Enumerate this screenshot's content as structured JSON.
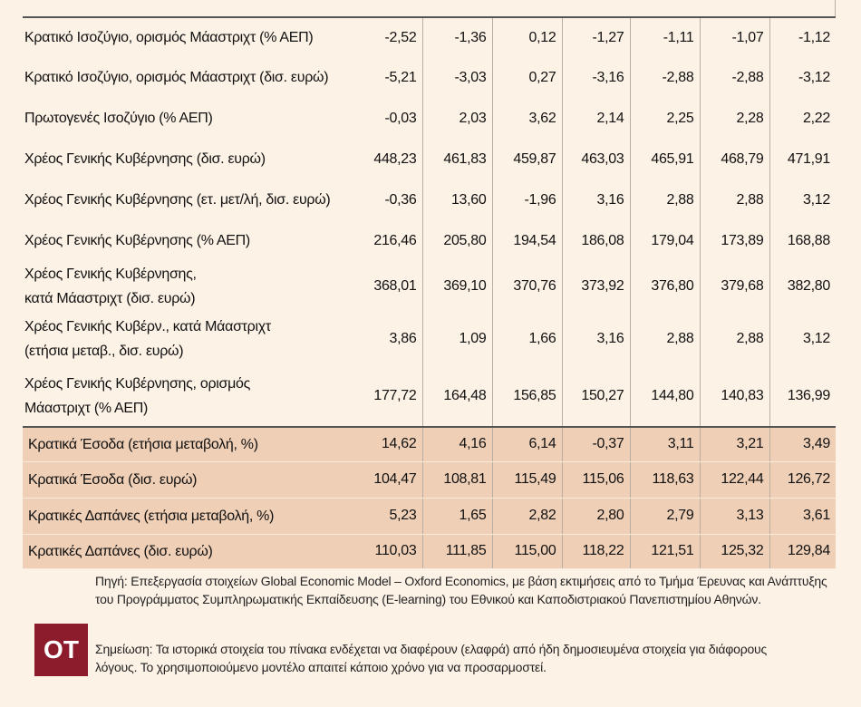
{
  "table": {
    "rows": [
      {
        "label": "Κρατικό Ισοζύγιο, ορισμός Μάαστριχτ (% ΑΕΠ)",
        "values": [
          "-2,52",
          "-1,36",
          "0,12",
          "-1,27",
          "-1,11",
          "-1,07",
          "-1,12"
        ]
      },
      {
        "label": "Κρατικό Ισοζύγιο, ορισμός  Μάαστριχτ (δισ. ευρώ)",
        "values": [
          "-5,21",
          "-3,03",
          "0,27",
          "-3,16",
          "-2,88",
          "-2,88",
          "-3,12"
        ]
      },
      {
        "label": "Πρωτογενές Ισοζύγιο (% ΑΕΠ)",
        "values": [
          "-0,03",
          "2,03",
          "3,62",
          "2,14",
          "2,25",
          "2,28",
          "2,22"
        ]
      },
      {
        "label": "Χρέος Γενικής Κυβέρνησης (δισ. ευρώ)",
        "values": [
          "448,23",
          "461,83",
          "459,87",
          "463,03",
          "465,91",
          "468,79",
          "471,91"
        ]
      },
      {
        "label": "Χρέος Γενικής Κυβέρνησης (ετ. μετ/λή, δισ. ευρώ)",
        "values": [
          "-0,36",
          "13,60",
          "-1,96",
          "3,16",
          "2,88",
          "2,88",
          "3,12"
        ]
      },
      {
        "label": "Χρέος Γενικής Κυβέρνησης (% ΑΕΠ)",
        "values": [
          "216,46",
          "205,80",
          "194,54",
          "186,08",
          "179,04",
          "173,89",
          "168,88"
        ]
      },
      {
        "label": "Χρέος Γενικής Κυβέρνησης,\n κατά Μάαστριχτ (δισ. ευρώ)",
        "values": [
          "368,01",
          "369,10",
          "370,76",
          "373,92",
          "376,80",
          "379,68",
          "382,80"
        ]
      },
      {
        "label": "Χρέος Γενικής Κυβέρν., κατά Μάαστριχτ\n(ετήσια μεταβ., δισ. ευρώ)",
        "values": [
          "3,86",
          "1,09",
          "1,66",
          "3,16",
          "2,88",
          "2,88",
          "3,12"
        ]
      },
      {
        "label": "Χρέος Γενικής Κυβέρνησης, ορισμός\nΜάαστριχτ (% ΑΕΠ)",
        "values": [
          "177,72",
          "164,48",
          "156,85",
          "150,27",
          "144,80",
          "140,83",
          "136,99"
        ]
      },
      {
        "label": "Κρατικά Έσοδα (ετήσια μεταβολή, %)",
        "values": [
          "14,62",
          "4,16",
          "6,14",
          "-0,37",
          "3,11",
          "3,21",
          "3,49"
        ]
      },
      {
        "label": "Κρατικά Έσοδα (δισ. ευρώ)",
        "values": [
          "104,47",
          "108,81",
          "115,49",
          "115,06",
          "118,63",
          "122,44",
          "126,72"
        ]
      },
      {
        "label": "Κρατικές Δαπάνες (ετήσια μεταβολή, %)",
        "values": [
          "5,23",
          "1,65",
          "2,82",
          "2,80",
          "2,79",
          "3,13",
          "3,61"
        ]
      },
      {
        "label": "Κρατικές Δαπάνες (δισ. ευρώ)",
        "values": [
          "110,03",
          "111,85",
          "115,00",
          "118,22",
          "121,51",
          "125,32",
          "129,84"
        ]
      }
    ]
  },
  "footer": {
    "logo": "OT",
    "source": "Πηγή: Επεξεργασία στοιχείων Global Economic Model – Oxford Economics, με βάση εκτιμήσεις από το Τμήμα Έρευνας και Ανάπτυξης του Προγράμματος Συμπληρωματικής Εκπαίδευσης (E-learning) του Εθνικού και Καποδιστριακού Πανεπιστημίου Αθηνών.",
    "note": "Σημείωση: Τα ιστορικά στοιχεία του πίνακα ενδέχεται να διαφέρουν (ελαφρά) από ήδη δημοσιευμένα στοιχεία για διάφορους λόγους. Το χρησιμοποιούμενο μοντέλο απαιτεί κάποιο χρόνο για να προσαρμοστεί."
  }
}
